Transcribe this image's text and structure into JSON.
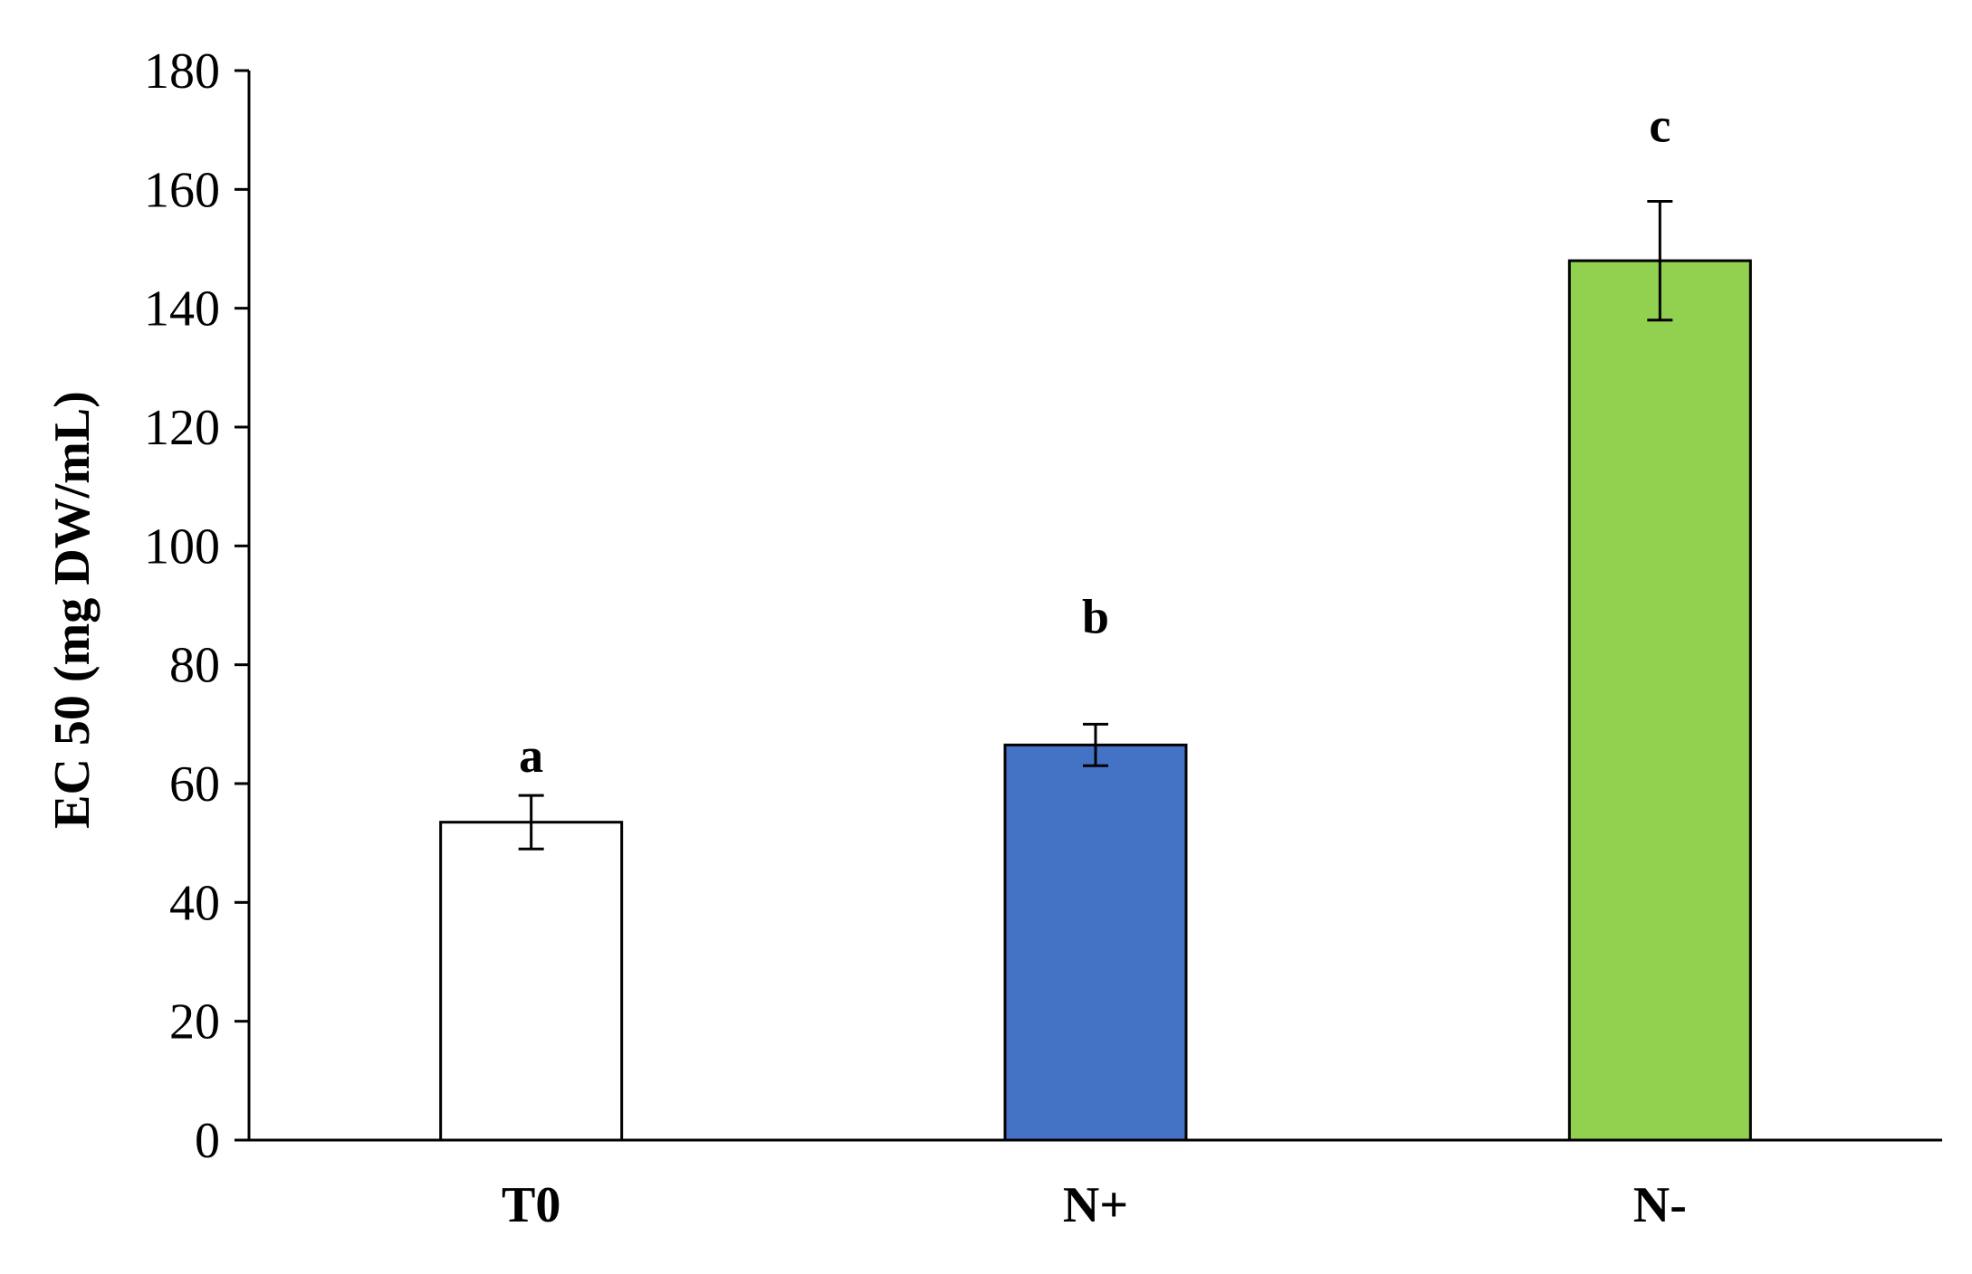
{
  "chart_data": {
    "type": "bar",
    "title": "",
    "xlabel": "",
    "ylabel": "EC 50 (mg DW/mL)",
    "ylim": [
      0,
      180
    ],
    "yticks": [
      0,
      20,
      40,
      60,
      80,
      100,
      120,
      140,
      160,
      180
    ],
    "categories": [
      "T0",
      "N+",
      "N-"
    ],
    "values": [
      53.5,
      66.5,
      148
    ],
    "errors": [
      4.5,
      3.5,
      10
    ],
    "significance_letters": [
      "a",
      "b",
      "c"
    ],
    "bar_colors": [
      "#ffffff",
      "#4472c4",
      "#92d050"
    ],
    "bar_edge_color": "#000000",
    "grid": false,
    "legend": "none"
  }
}
